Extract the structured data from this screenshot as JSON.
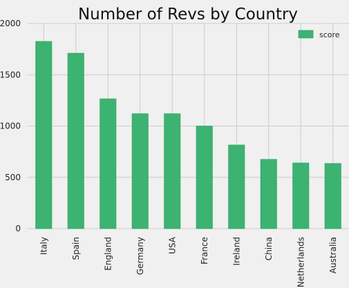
{
  "chart_data": {
    "type": "bar",
    "title": "Number of Revs by Country",
    "categories": [
      "Italy",
      "Spain",
      "England",
      "Germany",
      "USA",
      "France",
      "Ireland",
      "China",
      "Netherlands",
      "Australia"
    ],
    "series": [
      {
        "name": "score",
        "values": [
          1825,
          1710,
          1265,
          1120,
          1120,
          1000,
          815,
          675,
          640,
          635
        ]
      }
    ],
    "y_ticks": [
      0,
      500,
      1000,
      1500,
      2000
    ],
    "ylim": [
      0,
      2000
    ],
    "xlabel": "",
    "ylabel": "",
    "grid": true,
    "legend_position": "top-right",
    "colors": {
      "bar": "#3cb371",
      "bar_edge": "#34a868",
      "grid": "#cbcbcb",
      "background": "#f0f0f0"
    }
  }
}
